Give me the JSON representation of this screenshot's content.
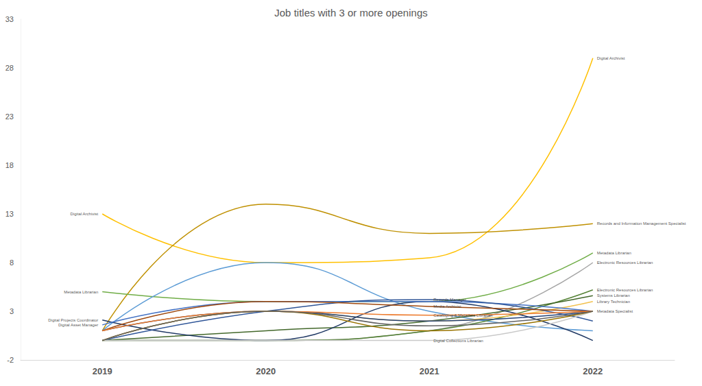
{
  "chart_data": {
    "type": "line",
    "title": "Job titles with 3 or more openings",
    "categories": [
      "2019",
      "2020",
      "2021",
      "2022"
    ],
    "ylim": [
      -2,
      33
    ],
    "yticks": [
      -2,
      3,
      8,
      13,
      18,
      23,
      28,
      33
    ],
    "grid": false,
    "series": [
      {
        "name": "Digital Archivist",
        "color": "#FFC000",
        "values": [
          13,
          8,
          8.5,
          29
        ]
      },
      {
        "name": "Records and Information Management Specialist",
        "color": "#BF9000",
        "values": [
          1,
          14,
          11,
          12
        ]
      },
      {
        "name": "Metadata Librarian",
        "color": "#70AD47",
        "values": [
          5,
          4,
          4,
          9
        ]
      },
      {
        "name": "Electronic Resources Librarian",
        "color": "#A5A5A5",
        "values": [
          0,
          0,
          1,
          8
        ]
      },
      {
        "color": "#5B9BD5",
        "values": [
          1,
          8,
          3,
          1
        ]
      },
      {
        "name": "Electronic Resources Librarian",
        "color": "#548235",
        "values": [
          0,
          0,
          1,
          5.2
        ]
      },
      {
        "name": "Systems Librarian",
        "color": "#43682B",
        "values": [
          0,
          1,
          2,
          4.6
        ]
      },
      {
        "name": "Library Technician",
        "color": "#F2C14E",
        "values": [
          0,
          3,
          2,
          4
        ]
      },
      {
        "name": "Metadata Specialist",
        "color": "#264478",
        "values": [
          1,
          3,
          2,
          3
        ]
      },
      {
        "name": "Digital Projects Coordinator",
        "color": "#1F3864",
        "values": [
          2.1,
          0,
          4,
          0
        ]
      },
      {
        "name": "Digital Asset Manager",
        "color": "#4472C4",
        "values": [
          1.6,
          4,
          4,
          3
        ]
      },
      {
        "name": "Records Manager",
        "color": "#2F5597",
        "values": [
          0,
          3,
          4.2,
          2
        ]
      },
      {
        "name": "Media Archivist",
        "color": "#9E480E",
        "values": [
          1,
          4,
          3.5,
          3
        ]
      },
      {
        "name": "Cataloging & Metadata Librarian",
        "color": "#ED7D31",
        "values": [
          1,
          3,
          2.6,
          3
        ]
      },
      {
        "name": "Digital Collections Librarian",
        "color": "#C9C9C9",
        "values": [
          0,
          0,
          0,
          3
        ]
      },
      {
        "color": "#997300",
        "values": [
          0,
          3,
          1,
          3
        ]
      },
      {
        "color": "#636363",
        "values": [
          0,
          3,
          1.5,
          3
        ]
      }
    ],
    "annotations": [
      {
        "text": "Digital Archivist",
        "x": "2019",
        "y": 13
      },
      {
        "text": "Metadata Librarian",
        "x": "2019",
        "y": 5
      },
      {
        "text": "Digital Projects Coordinator",
        "x": "2019",
        "y": 2.1
      },
      {
        "text": "Digital Asset Manager",
        "x": "2019",
        "y": 1.6
      },
      {
        "text": "Records Manager",
        "x": "2021",
        "y": 4.2
      },
      {
        "text": "Media Archivist",
        "x": "2021",
        "y": 3.5
      },
      {
        "text": "Cataloging & Metadata Librarian",
        "x": "2021",
        "y": 2.6
      },
      {
        "text": "Digital Collections Librarian",
        "x": "2021",
        "y": 0
      },
      {
        "text": "Digital Archivist",
        "x": "2022",
        "y": 29
      },
      {
        "text": "Records and Information Management Specialist",
        "x": "2022",
        "y": 12
      },
      {
        "text": "Metadata Librarian",
        "x": "2022",
        "y": 9
      },
      {
        "text": "Electronic Resources Librarian",
        "x": "2022",
        "y": 8
      },
      {
        "text": "Electronic Resources Librarian",
        "x": "2022",
        "y": 5.2
      },
      {
        "text": "Systems Librarian",
        "x": "2022",
        "y": 4.6
      },
      {
        "text": "Library Technician",
        "x": "2022",
        "y": 4
      },
      {
        "text": "Metadata Specialist",
        "x": "2022",
        "y": 3
      }
    ]
  }
}
